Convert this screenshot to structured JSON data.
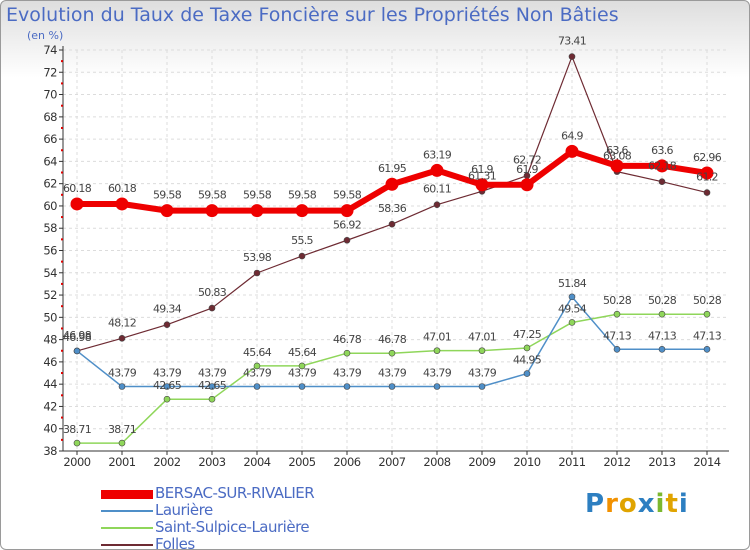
{
  "chart_data": {
    "type": "line",
    "title": "Evolution du Taux de Taxe Foncière sur les Propriétés Non Bâties",
    "ylabel": "(en %)",
    "ylim": [
      38,
      74
    ],
    "yticks": [
      38,
      40,
      42,
      44,
      46,
      48,
      50,
      52,
      54,
      56,
      58,
      60,
      62,
      64,
      66,
      68,
      70,
      72,
      74
    ],
    "categories": [
      "2000",
      "2001",
      "2002",
      "2003",
      "2004",
      "2005",
      "2006",
      "2007",
      "2008",
      "2009",
      "2010",
      "2011",
      "2012",
      "2013",
      "2014"
    ],
    "series": [
      {
        "name": "BERSAC-SUR-RIVALIER",
        "color": "#ee0000",
        "values": [
          60.18,
          60.18,
          59.58,
          59.58,
          59.58,
          59.58,
          59.58,
          61.95,
          63.19,
          61.9,
          61.9,
          64.9,
          63.6,
          63.6,
          62.96
        ],
        "labels": [
          "60.18",
          "60.18",
          "59.58",
          "59.58",
          "59.58",
          "59.58",
          "59.58",
          "61.95",
          "63.19",
          "61.9",
          "61.9",
          "64.9",
          "63.6",
          "63.6",
          "62.96"
        ]
      },
      {
        "name": "Laurière",
        "color": "#4f8fc8",
        "values": [
          46.98,
          43.79,
          43.79,
          43.79,
          43.79,
          43.79,
          43.79,
          43.79,
          43.79,
          43.79,
          44.95,
          51.84,
          47.13,
          47.13,
          47.13
        ],
        "labels": [
          "46.98",
          "43.79",
          "43.79",
          "43.79",
          "43.79",
          "43.79",
          "43.79",
          "43.79",
          "43.79",
          "43.79",
          "44.95",
          "51.84",
          "47.13",
          "47.13",
          "47.13"
        ]
      },
      {
        "name": "Saint-Sulpice-Laurière",
        "color": "#8fd65a",
        "values": [
          38.71,
          38.71,
          42.65,
          42.65,
          45.64,
          45.64,
          46.78,
          46.78,
          47.01,
          47.01,
          47.25,
          49.54,
          50.28,
          50.28,
          50.28
        ],
        "labels": [
          "38.71",
          "38.71",
          "42.65",
          "42.65",
          "45.64",
          "45.64",
          "46.78",
          "46.78",
          "47.01",
          "47.01",
          "47.25",
          "49.54",
          "50.28",
          "50.28",
          "50.28"
        ]
      },
      {
        "name": "Folles",
        "color": "#6e2b33",
        "values": [
          46.98,
          48.12,
          49.34,
          50.83,
          53.98,
          55.5,
          56.92,
          58.36,
          60.11,
          61.31,
          62.72,
          73.41,
          63.08,
          62.18,
          61.2
        ],
        "labels": [
          "46.98",
          "48.12",
          "49.34",
          "50.83",
          "53.98",
          "55.5",
          "56.92",
          "58.36",
          "60.11",
          "61.31",
          "62.72",
          "73.41",
          "63.08",
          "62.18",
          "61.2"
        ]
      }
    ]
  },
  "logo": {
    "letters": [
      "P",
      "r",
      "o",
      "x",
      "i",
      "t",
      "i"
    ],
    "colors": [
      "#2d7fc1",
      "#f29100",
      "#e0a400",
      "#2d7fc1",
      "#7cb82f",
      "#e0a400",
      "#2d7fc1"
    ]
  }
}
